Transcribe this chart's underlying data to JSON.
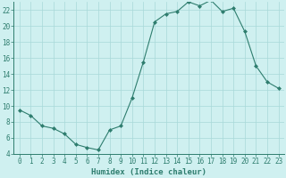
{
  "x": [
    0,
    1,
    2,
    3,
    4,
    5,
    6,
    7,
    8,
    9,
    10,
    11,
    12,
    13,
    14,
    15,
    16,
    17,
    18,
    19,
    20,
    21,
    22,
    23
  ],
  "y": [
    9.5,
    8.8,
    7.5,
    7.2,
    6.5,
    5.2,
    4.8,
    4.5,
    7.0,
    7.5,
    11.0,
    15.5,
    20.5,
    21.5,
    21.8,
    23.0,
    22.5,
    23.2,
    21.8,
    22.2,
    19.3,
    15.0,
    13.0,
    12.2
  ],
  "line_color": "#2e7d6e",
  "marker": "D",
  "marker_size": 2.0,
  "bg_color": "#cff0f0",
  "grid_major_color": "#a8d8d8",
  "grid_minor_color": "#b8e8e8",
  "tick_color": "#2e7d6e",
  "xlabel": "Humidex (Indice chaleur)",
  "ylim": [
    4,
    23
  ],
  "xlim": [
    -0.5,
    23.5
  ],
  "yticks": [
    4,
    6,
    8,
    10,
    12,
    14,
    16,
    18,
    20,
    22
  ],
  "xticks": [
    0,
    1,
    2,
    3,
    4,
    5,
    6,
    7,
    8,
    9,
    10,
    11,
    12,
    13,
    14,
    15,
    16,
    17,
    18,
    19,
    20,
    21,
    22,
    23
  ],
  "tick_fontsize": 5.5,
  "xlabel_fontsize": 6.5
}
